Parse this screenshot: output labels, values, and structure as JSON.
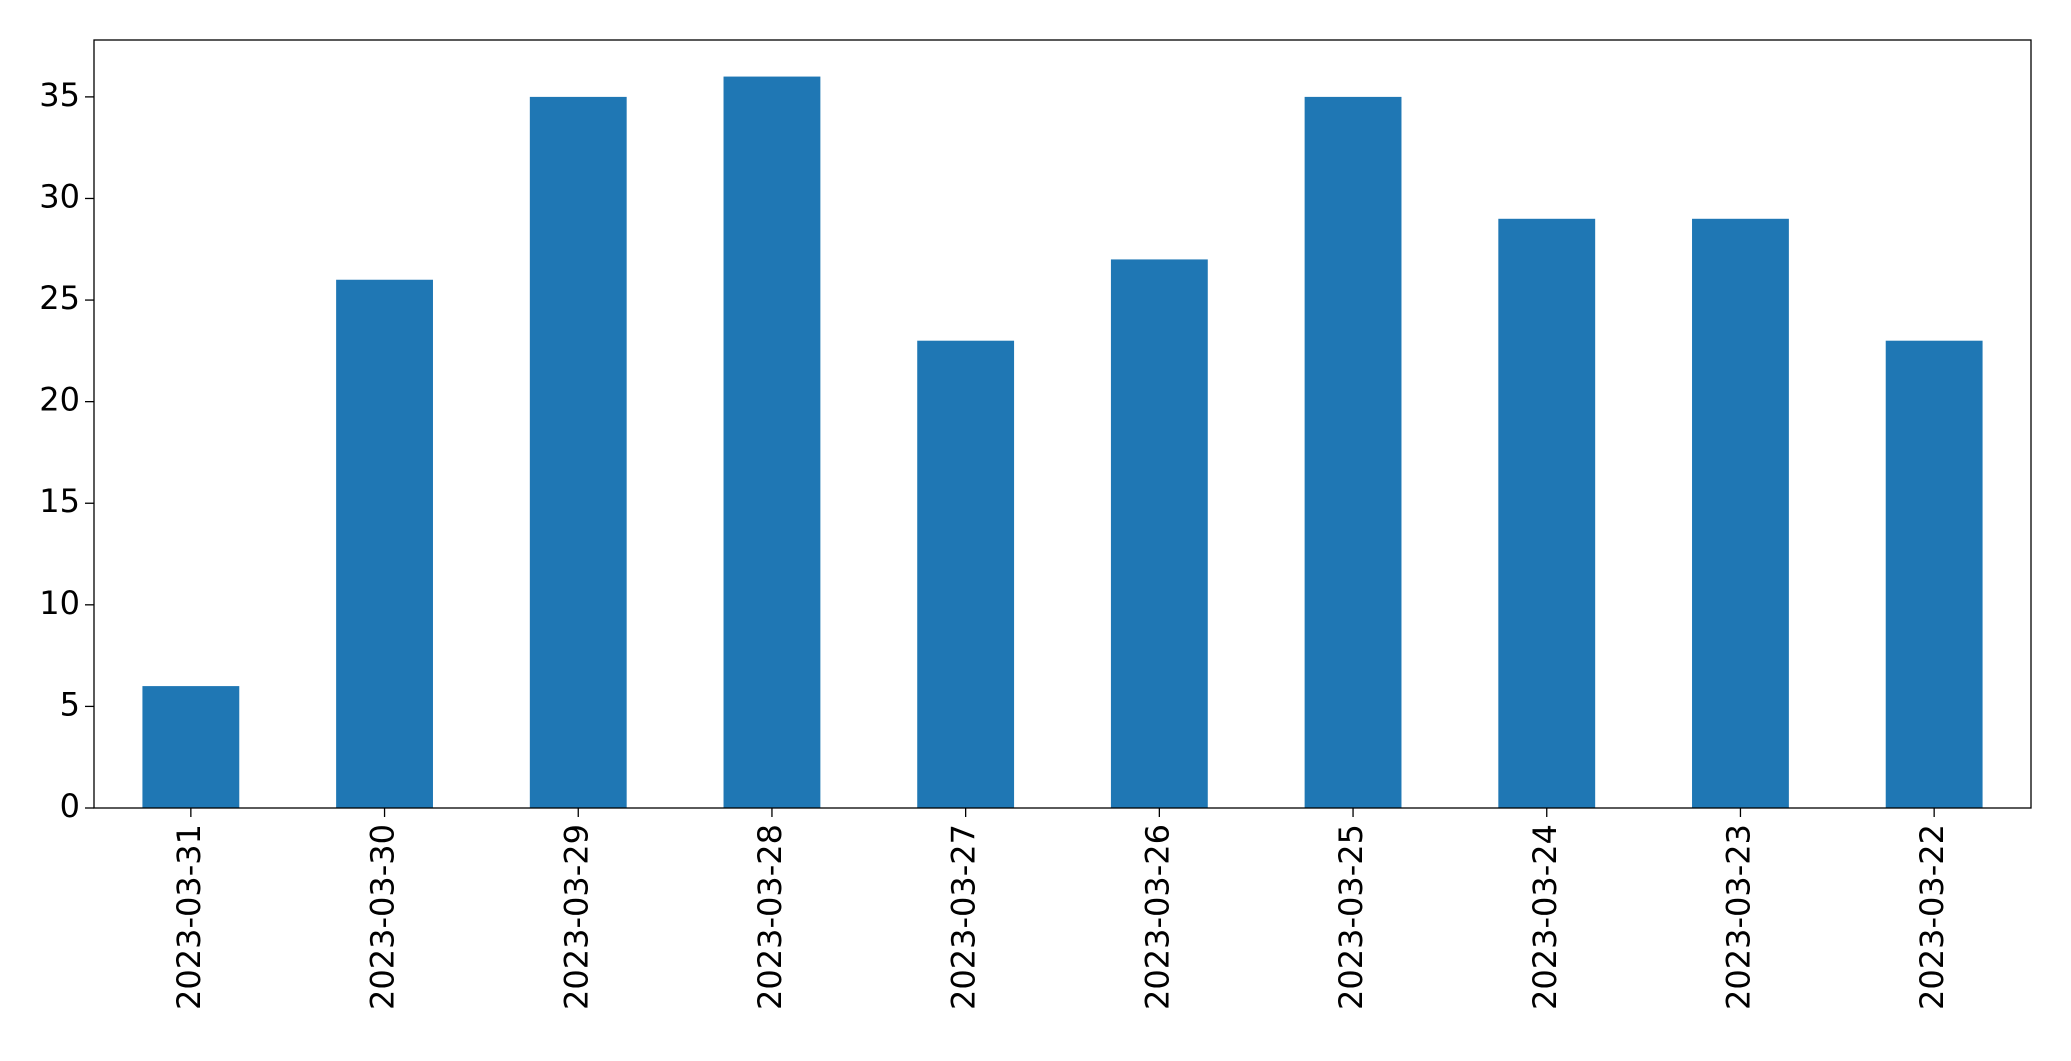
{
  "chart_data": {
    "type": "bar",
    "categories": [
      "2023-03-31",
      "2023-03-30",
      "2023-03-29",
      "2023-03-28",
      "2023-03-27",
      "2023-03-26",
      "2023-03-25",
      "2023-03-24",
      "2023-03-23",
      "2023-03-22"
    ],
    "values": [
      6,
      26,
      35,
      36,
      23,
      27,
      35,
      29,
      29,
      23
    ],
    "color": "#1f77b4",
    "ylim": [
      0,
      37.8
    ],
    "yticks": [
      0,
      5,
      10,
      15,
      20,
      25,
      30,
      35
    ],
    "grid": false
  }
}
